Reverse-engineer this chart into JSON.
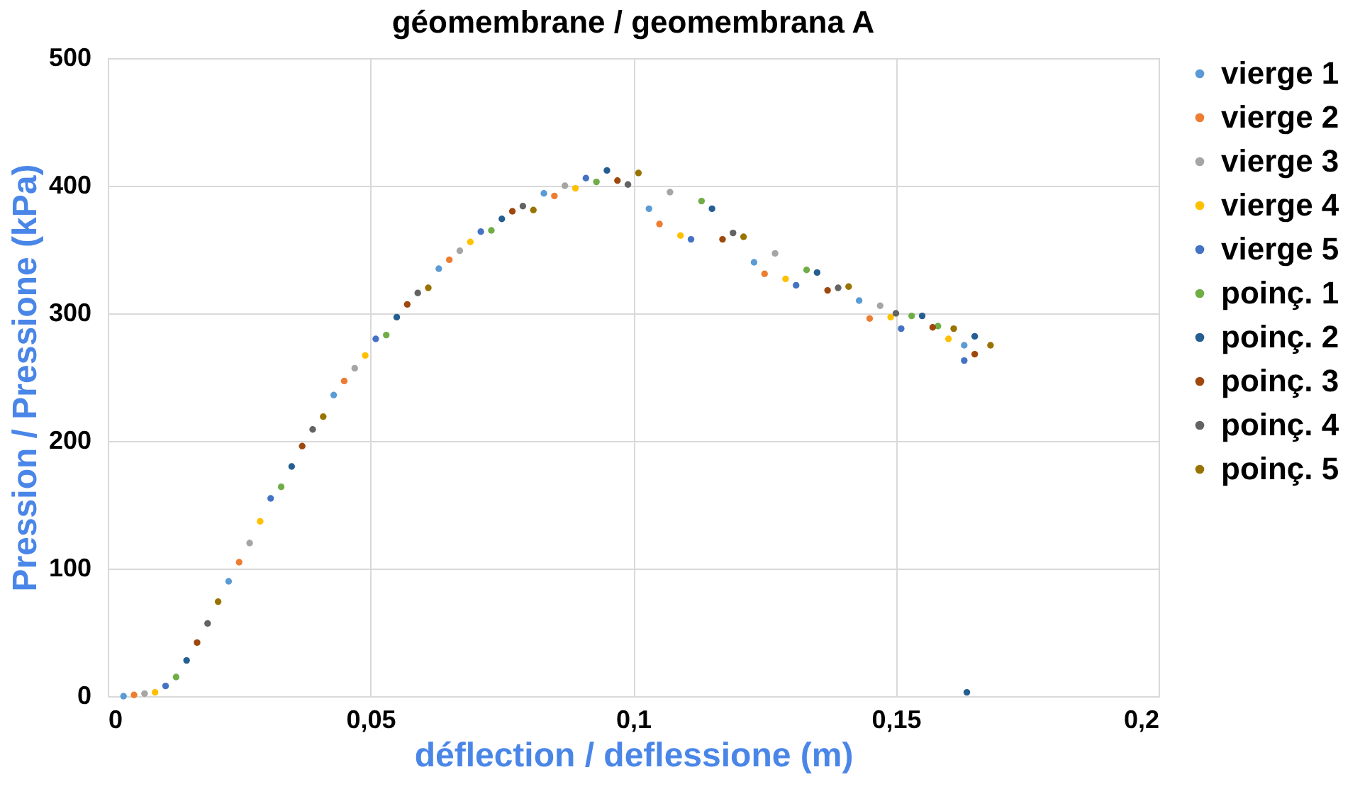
{
  "chart_data": {
    "type": "scatter",
    "title": "géomembrane / geomembrana A",
    "xlabel": "déflection / deflessione (m)",
    "ylabel": "Pression / Pressione (kPa)",
    "xlim": [
      0,
      0.2
    ],
    "xticks": [
      {
        "value": 0,
        "label": "0"
      },
      {
        "value": 0.05,
        "label": "0,05"
      },
      {
        "value": 0.1,
        "label": "0,1"
      },
      {
        "value": 0.15,
        "label": "0,15"
      },
      {
        "value": 0.2,
        "label": "0,2"
      }
    ],
    "ylim": [
      0,
      500
    ],
    "yticks": [
      0,
      100,
      200,
      300,
      400,
      500
    ],
    "grid": true,
    "legend": "right",
    "marker": "circle",
    "series": [
      {
        "name": "vierge 1",
        "color": "#5b9bd5",
        "x": [
          0.003,
          0.023,
          0.043,
          0.063,
          0.083,
          0.103,
          0.123,
          0.143,
          0.163
        ],
        "values": [
          0,
          90,
          236,
          335,
          394,
          382,
          340,
          310,
          275
        ]
      },
      {
        "name": "vierge 2",
        "color": "#ed7d31",
        "x": [
          0.005,
          0.025,
          0.045,
          0.065,
          0.085,
          0.105,
          0.125,
          0.145
        ],
        "values": [
          1,
          105,
          247,
          342,
          392,
          370,
          331,
          296
        ]
      },
      {
        "name": "vierge 3",
        "color": "#a5a5a5",
        "x": [
          0.007,
          0.027,
          0.047,
          0.067,
          0.087,
          0.107,
          0.127,
          0.147
        ],
        "values": [
          2,
          120,
          257,
          349,
          400,
          395,
          347,
          306
        ]
      },
      {
        "name": "vierge 4",
        "color": "#ffc000",
        "x": [
          0.009,
          0.029,
          0.049,
          0.069,
          0.089,
          0.109,
          0.129,
          0.149,
          0.16
        ],
        "values": [
          3,
          137,
          267,
          356,
          398,
          361,
          327,
          297,
          280
        ]
      },
      {
        "name": "vierge 5",
        "color": "#4472c4",
        "x": [
          0.011,
          0.031,
          0.051,
          0.071,
          0.091,
          0.111,
          0.131,
          0.151,
          0.163
        ],
        "values": [
          8,
          155,
          280,
          364,
          406,
          358,
          322,
          288,
          263
        ]
      },
      {
        "name": "poinç. 1",
        "color": "#70ad47",
        "x": [
          0.013,
          0.033,
          0.053,
          0.073,
          0.093,
          0.113,
          0.133,
          0.153,
          0.158
        ],
        "values": [
          15,
          164,
          283,
          365,
          403,
          388,
          334,
          298,
          290
        ]
      },
      {
        "name": "poinç. 2",
        "color": "#255e91",
        "x": [
          0.015,
          0.035,
          0.055,
          0.075,
          0.095,
          0.115,
          0.135,
          0.155,
          0.165,
          0.1635
        ],
        "values": [
          28,
          180,
          297,
          374,
          412,
          382,
          332,
          298,
          282,
          3
        ]
      },
      {
        "name": "poinç. 3",
        "color": "#9e480e",
        "x": [
          0.017,
          0.037,
          0.057,
          0.077,
          0.097,
          0.117,
          0.137,
          0.157,
          0.165
        ],
        "values": [
          42,
          196,
          307,
          380,
          404,
          358,
          318,
          289,
          268
        ]
      },
      {
        "name": "poinç. 4",
        "color": "#636363",
        "x": [
          0.019,
          0.039,
          0.059,
          0.079,
          0.099,
          0.119,
          0.139,
          0.15
        ],
        "values": [
          57,
          209,
          316,
          384,
          401,
          363,
          320,
          300
        ]
      },
      {
        "name": "poinç. 5",
        "color": "#997300",
        "x": [
          0.021,
          0.041,
          0.061,
          0.081,
          0.101,
          0.121,
          0.141,
          0.161,
          0.168
        ],
        "values": [
          74,
          219,
          320,
          381,
          410,
          360,
          321,
          288,
          275
        ]
      }
    ]
  }
}
